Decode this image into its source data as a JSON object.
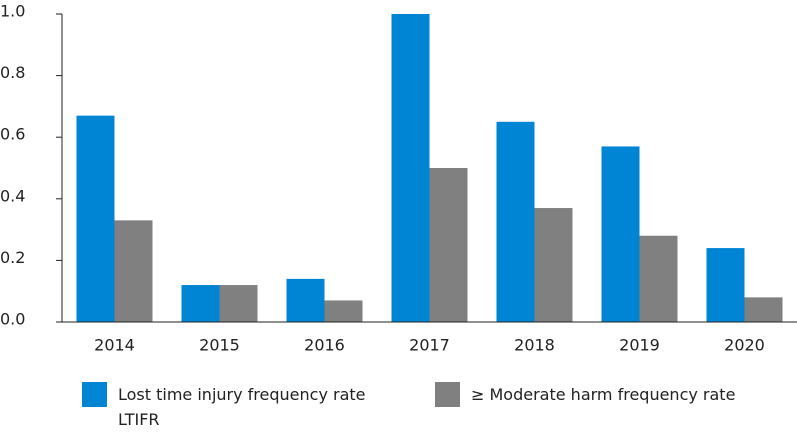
{
  "chart_data": {
    "type": "bar",
    "categories": [
      "2014",
      "2015",
      "2016",
      "2017",
      "2018",
      "2019",
      "2020"
    ],
    "series": [
      {
        "name": "Lost time injury frequency rate LTIFR",
        "color": "#0085d5",
        "values": [
          0.67,
          0.12,
          0.14,
          1.0,
          0.65,
          0.57,
          0.24
        ]
      },
      {
        "name": "≥ Moderate harm frequency rate",
        "color": "#808080",
        "values": [
          0.33,
          0.12,
          0.07,
          0.5,
          0.37,
          0.28,
          0.08
        ]
      }
    ],
    "ylim": [
      0,
      1.0
    ],
    "yticks": [
      {
        "value": 0,
        "label": "0.0"
      },
      0.2,
      0.4,
      0.6,
      0.8,
      {
        "value": 1.0,
        "label": "1.0"
      }
    ],
    "grid": false
  }
}
